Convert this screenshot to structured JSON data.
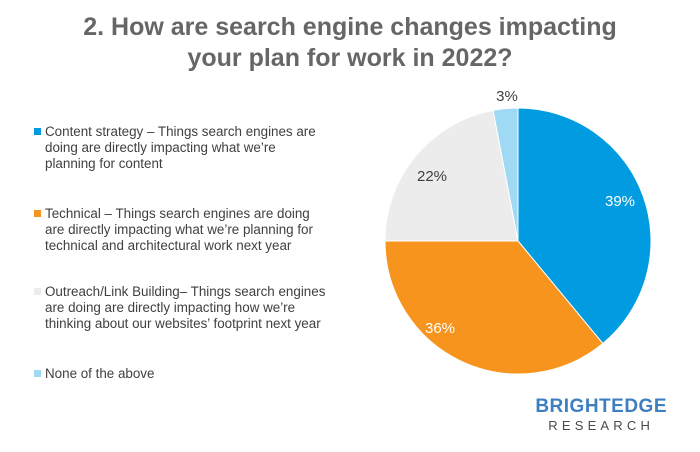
{
  "title": {
    "line1": "2. How are search engine changes impacting",
    "line2": "your plan for work in 2022?"
  },
  "chart_data": {
    "type": "pie",
    "title": "2. How are search engine changes impacting your plan for work in 2022?",
    "legend_position": "left",
    "slices": [
      {
        "label": "Content strategy – Things search engines are doing are directly impacting what we’re planning for content",
        "legend_lines": [
          "Content strategy – Things search engines are",
          "doing are directly impacting what we’re",
          "planning for content"
        ],
        "value": 39,
        "value_label": "39%",
        "color": "#009be0",
        "label_color": "#ffffff"
      },
      {
        "label": "Technical – Things search engines are doing are directly impacting what we’re planning for technical and architectural work next year",
        "legend_lines": [
          "Technical – Things search engines are doing",
          "are directly impacting what we’re planning for",
          "technical and architectural work next year"
        ],
        "value": 36,
        "value_label": "36%",
        "color": "#f7941d",
        "label_color": "#ffffff"
      },
      {
        "label": "Outreach/Link Building– Things search engines are doing are directly impacting how we’re thinking about our websites’ footprint next year",
        "legend_lines": [
          "Outreach/Link Building– Things search engines",
          "are doing are directly impacting how we’re",
          "thinking about our websites’ footprint next year"
        ],
        "value": 22,
        "value_label": "22%",
        "color": "#ececec",
        "label_color": "#404040"
      },
      {
        "label": "None of the above",
        "legend_lines": [
          "None of the above"
        ],
        "value": 3,
        "value_label": "3%",
        "color": "#9fd9f3",
        "label_color": "#404040"
      }
    ]
  },
  "brand": {
    "name": "BRIGHTEDGE",
    "sub": "RESEARCH"
  }
}
